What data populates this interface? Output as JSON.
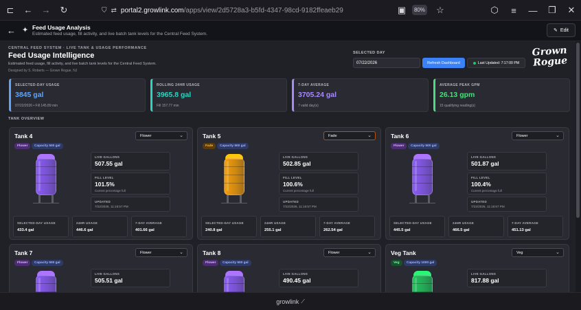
{
  "browser": {
    "url_host": "portal2.growlink.com",
    "url_path": "/apps/view/2d5728a3-b5fd-4347-98cd-9182ffeaeb29",
    "zoom": "80%"
  },
  "app": {
    "title": "Feed Usage Analysis",
    "subtitle": "Estimated feed usage, fill activity, and live batch tank levels for the Central Feed System.",
    "edit_label": "Edit"
  },
  "dashboard": {
    "eyebrow": "CENTRAL FEED SYSTEM · LIVE TANK & USAGE PERFORMANCE",
    "title": "Feed Usage Intelligence",
    "description": "Estimated feed usage, fill activity, and live batch tank levels for the Central Feed System.",
    "byline": "Designed by S. Roberts — Grown Rogue, NJ",
    "selected_day_label": "SELECTED DAY",
    "selected_day_value": "07/22/2026",
    "refresh_label": "Refresh Dashboard",
    "last_updated": "Last Updated: 7:17:00 PM",
    "logo_line1": "Grown",
    "logo_line2": "Rogue",
    "section_label": "TANK OVERVIEW"
  },
  "kpis": [
    {
      "label": "SELECTED-DAY USAGE",
      "value": "3845 gal",
      "sub": "07/22/2026 • Fill 145.89 min",
      "color": "#60a5fa"
    },
    {
      "label": "ROLLING 24HR USAGE",
      "value": "3965.8 gal",
      "sub": "Fill 157.77 min",
      "color": "#2dd4bf"
    },
    {
      "label": "7-DAY AVERAGE",
      "value": "3705.24 gal",
      "sub": "7 valid day(s)",
      "color": "#a78bfa"
    },
    {
      "label": "AVERAGE PEAK GPM",
      "value": "26.13 gpm",
      "sub": "15 qualifying reading(s)",
      "color": "#4ade80"
    }
  ],
  "stat_labels": {
    "live": "LIVE GALLONS",
    "fill": "FILL LEVEL",
    "fill_note": "Current percentage full",
    "updated": "UPDATED",
    "selected": "SELECTED-DAY USAGE",
    "h24": "24HR USAGE",
    "avg7": "7-DAY AVERAGE"
  },
  "tanks": [
    {
      "name": "Tank 4",
      "select": "Flower",
      "stage": "Flower",
      "capacity": "Capacity 500 gal",
      "live": "507.55 gal",
      "fill": "101.5%",
      "updated": "7/22/2026, 11:16:57 PM",
      "selected_day": "433.4 gal",
      "h24": "446.6 gal",
      "avg7": "401.66 gal",
      "fill_color": "#8b5cf6"
    },
    {
      "name": "Tank 5",
      "select": "Fade",
      "stage": "Fade",
      "capacity": "Capacity 500 gal",
      "live": "502.85 gal",
      "fill": "100.6%",
      "updated": "7/22/2026, 11:16:57 PM",
      "selected_day": "240.8 gal",
      "h24": "255.1 gal",
      "avg7": "262.54 gal",
      "fill_color": "#f59e0b"
    },
    {
      "name": "Tank 6",
      "select": "Flower",
      "stage": "Flower",
      "capacity": "Capacity 500 gal",
      "live": "501.87 gal",
      "fill": "100.4%",
      "updated": "7/22/2026, 11:16:57 PM",
      "selected_day": "445.5 gal",
      "h24": "466.5 gal",
      "avg7": "451.13 gal",
      "fill_color": "#8b5cf6"
    },
    {
      "name": "Tank 7",
      "select": "Flower",
      "stage": "Flower",
      "capacity": "Capacity 500 gal",
      "live": "505.51 gal",
      "fill_color": "#8b5cf6"
    },
    {
      "name": "Tank 8",
      "select": "Flower",
      "stage": "Flower",
      "capacity": "Capacity 500 gal",
      "live": "490.45 gal",
      "fill_color": "#8b5cf6"
    },
    {
      "name": "Veg Tank",
      "select": "Veg",
      "stage": "Veg",
      "capacity": "Capacity 1000 gal",
      "live": "817.88 gal",
      "fill_color": "#22c55e"
    }
  ],
  "footer": {
    "brand": "growlink"
  }
}
